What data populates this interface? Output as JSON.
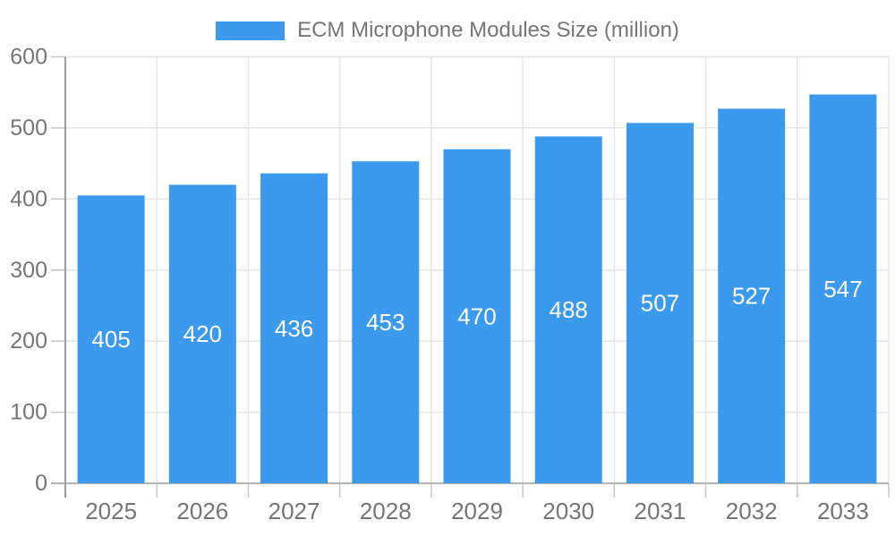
{
  "page": {
    "background_color": "#ffffff"
  },
  "chart_data": {
    "type": "bar",
    "title": "ECM Microphone Modules Size (million)",
    "categories": [
      "2025",
      "2026",
      "2027",
      "2028",
      "2029",
      "2030",
      "2031",
      "2032",
      "2033"
    ],
    "series": [
      {
        "name": "ECM Microphone Modules Size (million)",
        "values": [
          405,
          420,
          436,
          453,
          470,
          488,
          507,
          527,
          547
        ]
      }
    ],
    "value_labels": [
      "405",
      "420",
      "436",
      "453",
      "470",
      "488",
      "507",
      "527",
      "547"
    ],
    "xlabel": "",
    "ylabel": "",
    "ylim": [
      0,
      600
    ],
    "y_ticks": [
      0,
      100,
      200,
      300,
      400,
      500,
      600
    ],
    "grid": true,
    "legend_position": "top-center",
    "bar_color": "#3b99ee",
    "value_label_color": "#ffffff",
    "axis_label_color": "#757575",
    "gridline_color": "#e5e5e5",
    "tick_color": "#c6c6c6",
    "x_axis_line_color": "#b3b3b3",
    "y_axis_line_color": "#9a9a9a"
  }
}
